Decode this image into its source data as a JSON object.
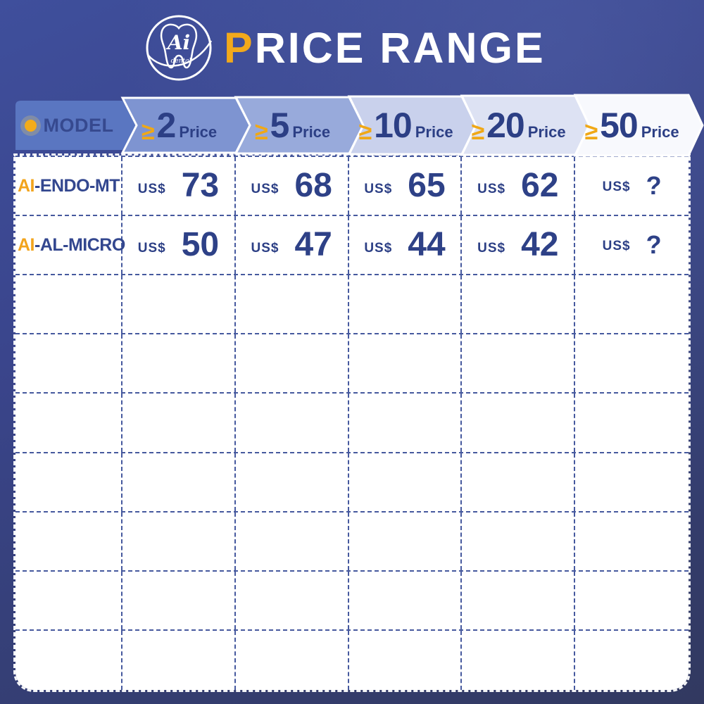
{
  "brand": {
    "logo": {
      "name": "Ai",
      "subtitle": "dental"
    },
    "title": {
      "accent": "P",
      "rest": "RICE RANGE"
    }
  },
  "pricing_table": {
    "header": {
      "model_column_label": "MODEL",
      "tiers": [
        {
          "symbol": "≥",
          "min_qty": "2",
          "suffix": "Price"
        },
        {
          "symbol": "≥",
          "min_qty": "5",
          "suffix": "Price"
        },
        {
          "symbol": "≥",
          "min_qty": "10",
          "suffix": "Price"
        },
        {
          "symbol": "≥",
          "min_qty": "20",
          "suffix": "Price"
        },
        {
          "symbol": "≥",
          "min_qty": "50",
          "suffix": "Price"
        }
      ]
    },
    "rows": [
      {
        "model_accent": "AI",
        "model_rest": "-ENDO-MT",
        "prices": [
          {
            "currency": "US$",
            "value": "73"
          },
          {
            "currency": "US$",
            "value": "68"
          },
          {
            "currency": "US$",
            "value": "65"
          },
          {
            "currency": "US$",
            "value": "62"
          },
          {
            "currency": "US$",
            "value": "?"
          }
        ]
      },
      {
        "model_accent": "AI",
        "model_rest": "-AL-MICRO",
        "prices": [
          {
            "currency": "US$",
            "value": "50"
          },
          {
            "currency": "US$",
            "value": "47"
          },
          {
            "currency": "US$",
            "value": "44"
          },
          {
            "currency": "US$",
            "value": "42"
          },
          {
            "currency": "US$",
            "value": "?"
          }
        ]
      }
    ],
    "empty_row_count": 7
  },
  "colors": {
    "accent_orange": "#F2A71D",
    "navy_text": "#2E4187",
    "background_top": "#3F4F9C",
    "background_bottom": "#323960",
    "header_cell_colors": [
      "#5A76C1",
      "#7E94D1",
      "#98AADB",
      "#C9D1EC",
      "#DDE2F3",
      "#F8F9FD"
    ],
    "grid_line": "#46599E",
    "outer_dash": "#FFFFFF"
  }
}
